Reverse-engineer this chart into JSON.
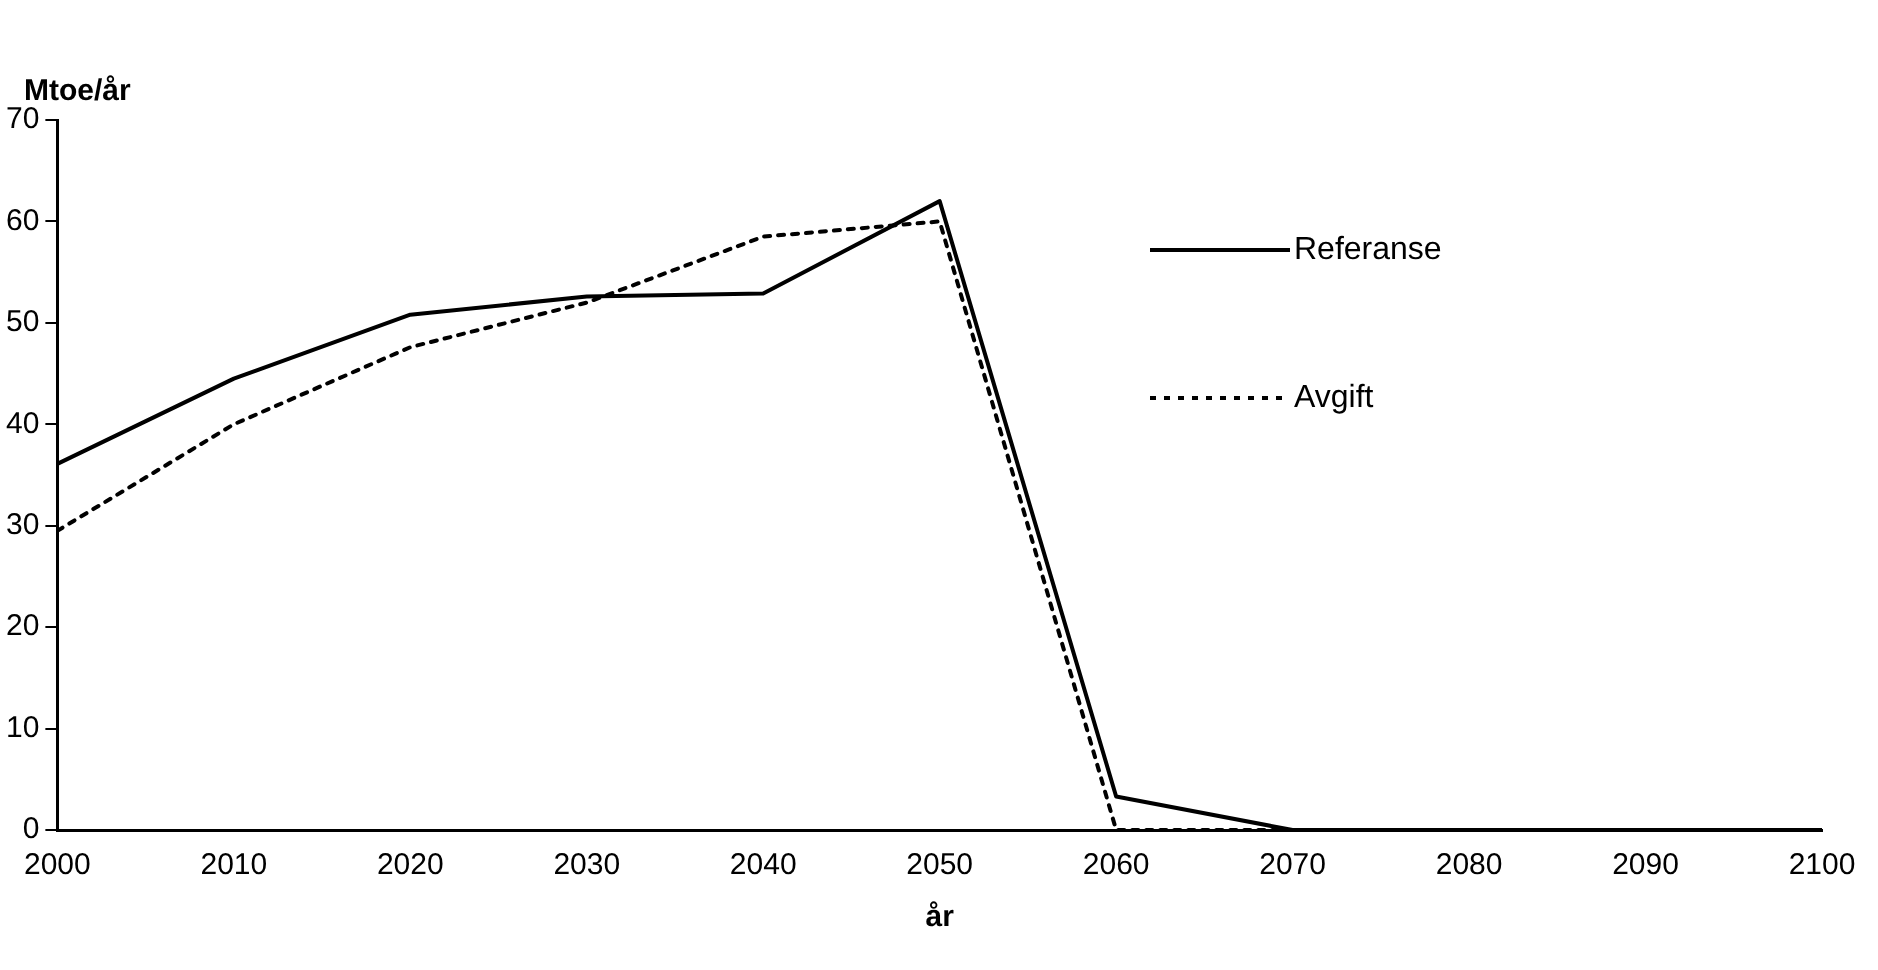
{
  "chart_data": {
    "type": "line",
    "xlabel": "år",
    "ylabel": "Mtoe/år",
    "x": [
      2000,
      2010,
      2020,
      2030,
      2040,
      2050,
      2060,
      2070,
      2080,
      2090,
      2100
    ],
    "series": [
      {
        "name": "Referanse",
        "color": "#000000",
        "line_style": "solid",
        "values": [
          36.1,
          44.5,
          50.8,
          52.6,
          52.9,
          62,
          3.3,
          0,
          0,
          0,
          0
        ]
      },
      {
        "name": "Avgift",
        "color": "#000000",
        "line_style": "dotted",
        "values": [
          29.5,
          40,
          47.6,
          52,
          58.5,
          60,
          0,
          0,
          0,
          0,
          0
        ]
      }
    ],
    "xlim": [
      2000,
      2100
    ],
    "xticks": [
      2000,
      2010,
      2020,
      2030,
      2040,
      2050,
      2060,
      2070,
      2080,
      2090,
      2100
    ],
    "ylim": [
      0,
      70
    ],
    "yticks": [
      0,
      10,
      20,
      30,
      40,
      50,
      60,
      70
    ],
    "grid": false,
    "legend": "right",
    "marker": "none"
  }
}
